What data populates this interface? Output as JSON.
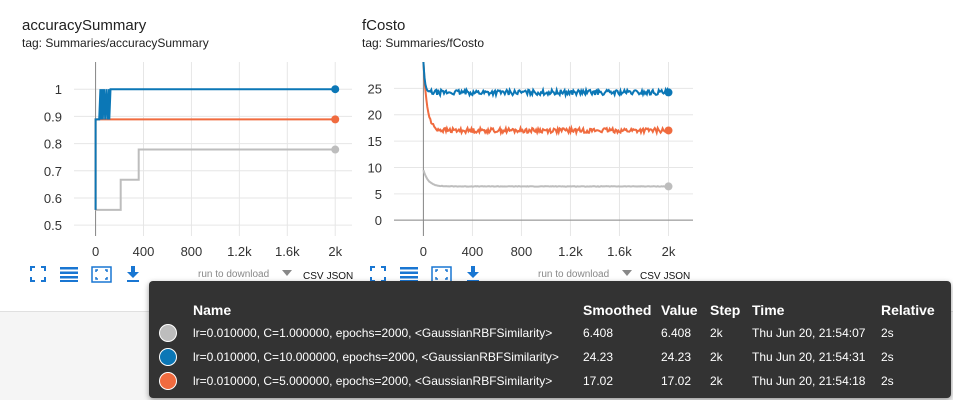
{
  "cards": [
    {
      "title": "accuracySummary",
      "tag": "tag: Summaries/accuracySummary"
    },
    {
      "title": "fCosto",
      "tag": "tag: Summaries/fCosto"
    }
  ],
  "toolbar": {
    "run_select_placeholder": "run to download",
    "csv_label": "CSV",
    "json_label": "JSON",
    "icons": [
      "fit-domain-icon",
      "data-selection-icon",
      "select-zoom-icon",
      "download-icon"
    ]
  },
  "colors": {
    "gray": "#bdbdbd",
    "blue": "#0b77b6",
    "orange": "#f06b3f",
    "accent": "#1976d2"
  },
  "chart_data": [
    {
      "type": "line",
      "title": "accuracySummary",
      "xlabel": "",
      "ylabel": "",
      "xlim": [
        -180,
        2140
      ],
      "ylim": [
        0.46,
        1.1
      ],
      "xticks": [
        0,
        400,
        800,
        1200,
        1600,
        2000
      ],
      "xtick_labels": [
        "0",
        "400",
        "800",
        "1.2k",
        "1.6k",
        "2k"
      ],
      "yticks": [
        0.5,
        0.6,
        0.7,
        0.8,
        0.9,
        1
      ],
      "ytick_labels": [
        "0.5",
        "0.6",
        "0.7",
        "0.8",
        "0.9",
        "1"
      ],
      "grid": true,
      "series": [
        {
          "color": "#bdbdbd",
          "x": [
            0,
            0,
            210,
            210,
            360,
            360,
            2000
          ],
          "y": [
            0.556,
            0.556,
            0.556,
            0.667,
            0.667,
            0.778,
            0.778
          ]
        },
        {
          "color": "#f06b3f",
          "x": [
            0,
            0,
            60,
            2000
          ],
          "y": [
            0.556,
            0.889,
            0.889,
            0.889
          ]
        },
        {
          "color": "#0b77b6",
          "x": [
            0,
            0,
            30,
            40,
            45,
            55,
            60,
            70,
            80,
            90,
            100,
            110,
            115,
            125,
            130,
            2000
          ],
          "y": [
            0.556,
            0.889,
            0.889,
            1,
            0.889,
            1,
            0.889,
            1,
            0.889,
            1,
            0.889,
            1,
            0.889,
            1,
            1,
            1
          ]
        }
      ]
    },
    {
      "type": "line",
      "title": "fCosto",
      "xlabel": "",
      "ylabel": "",
      "xlim": [
        -240,
        2200
      ],
      "ylim": [
        -3,
        30
      ],
      "xticks": [
        0,
        400,
        800,
        1200,
        1600,
        2000
      ],
      "xtick_labels": [
        "0",
        "400",
        "800",
        "1.2k",
        "1.6k",
        "2k"
      ],
      "yticks": [
        0,
        5,
        10,
        15,
        20,
        25
      ],
      "ytick_labels": [
        "0",
        "5",
        "10",
        "15",
        "20",
        "25"
      ],
      "grid": true,
      "series": [
        {
          "color": "#bdbdbd",
          "start": 9.5,
          "final": 6.408,
          "decay": 40,
          "noise": 0.05
        },
        {
          "color": "#f06b3f",
          "start": 30,
          "final": 17.02,
          "decay": 30,
          "noise": 0.45
        },
        {
          "color": "#0b77b6",
          "start": 30,
          "final": 24.23,
          "decay": 12,
          "noise": 0.5
        }
      ]
    }
  ],
  "tooltip": {
    "headers": [
      "Name",
      "Smoothed",
      "Value",
      "Step",
      "Time",
      "Relative"
    ],
    "rows": [
      {
        "color": "#bdbdbd",
        "name": "lr=0.010000, C=1.000000, epochs=2000, <GaussianRBFSimilarity>",
        "smoothed": "6.408",
        "value": "6.408",
        "step": "2k",
        "time": "Thu Jun 20, 21:54:07",
        "relative": "2s"
      },
      {
        "color": "#0b77b6",
        "name": "lr=0.010000, C=10.000000, epochs=2000, <GaussianRBFSimilarity>",
        "smoothed": "24.23",
        "value": "24.23",
        "step": "2k",
        "time": "Thu Jun 20, 21:54:31",
        "relative": "2s"
      },
      {
        "color": "#f06b3f",
        "name": "lr=0.010000, C=5.000000, epochs=2000, <GaussianRBFSimilarity>",
        "smoothed": "17.02",
        "value": "17.02",
        "step": "2k",
        "time": "Thu Jun 20, 21:54:18",
        "relative": "2s"
      }
    ]
  }
}
